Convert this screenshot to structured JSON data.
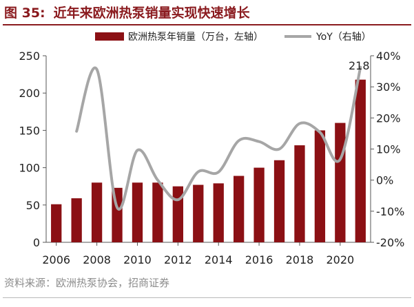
{
  "header": {
    "figure_number": "图 35:",
    "title": "近年来欧洲热泵销量实现快速增长"
  },
  "source": "资料来源：欧洲热泵协会，招商证券",
  "chart_data": {
    "type": "bar",
    "x": [
      2006,
      2007,
      2008,
      2009,
      2010,
      2011,
      2012,
      2013,
      2014,
      2015,
      2016,
      2017,
      2018,
      2019,
      2020,
      2021
    ],
    "xticks": [
      "2006",
      "2008",
      "2010",
      "2012",
      "2014",
      "2016",
      "2018",
      "2020"
    ],
    "ylim_left": [
      0,
      250
    ],
    "yticks_left": [
      "0",
      "50",
      "100",
      "150",
      "200",
      "250"
    ],
    "ylim_right": [
      -20,
      40
    ],
    "yticks_right": [
      "-20%",
      "-10%",
      "0%",
      "10%",
      "20%",
      "30%",
      "40%"
    ],
    "series": [
      {
        "name": "欧洲热泵年销量（万台，左轴）",
        "type": "bar",
        "axis": "left",
        "color": "#8b1014",
        "values": [
          51,
          59,
          80,
          73,
          80,
          80,
          75,
          77,
          79,
          89,
          100,
          110,
          130,
          150,
          160,
          218
        ]
      },
      {
        "name": "YoY（右轴）",
        "type": "line",
        "axis": "right",
        "color": "#a6a6a6",
        "values": [
          null,
          15.7,
          35.6,
          -8.8,
          9.6,
          0.0,
          -6.3,
          2.7,
          2.6,
          12.7,
          12.4,
          10.0,
          18.2,
          15.4,
          6.7,
          36.3
        ]
      }
    ],
    "data_labels": [
      {
        "x": 2021,
        "text": "218"
      }
    ],
    "legend_position": "top",
    "grid": false
  }
}
